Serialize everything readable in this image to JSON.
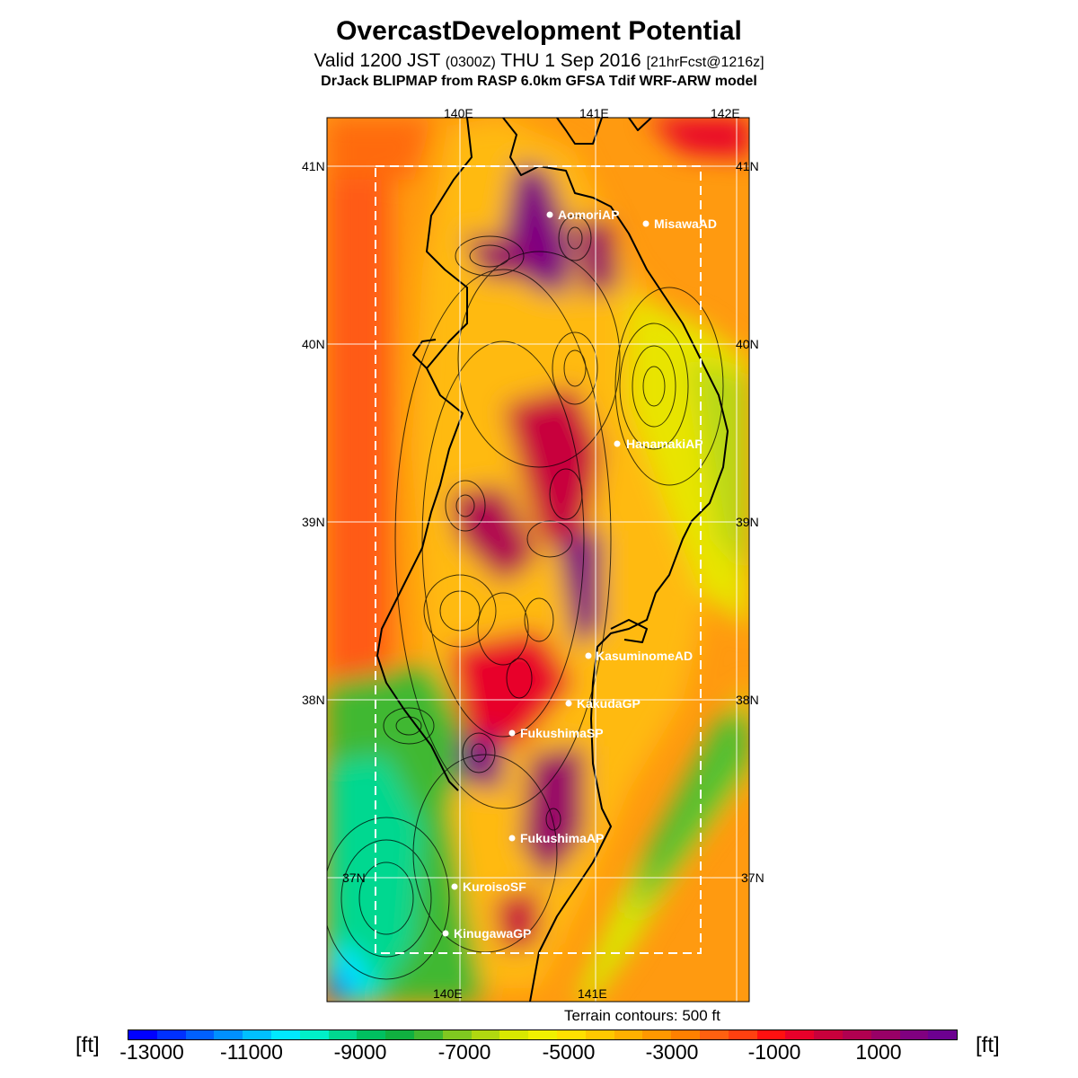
{
  "header": {
    "title": "OvercastDevelopment Potential",
    "valid_prefix": "Valid 1200 JST",
    "valid_utc": "(0300Z)",
    "valid_date": "THU 1 Sep 2016",
    "forecast": "[21hrFcst@1216z]",
    "model": "DrJack BLIPMAP from RASP 6.0km GFSA Tdif WRF-ARW model"
  },
  "map": {
    "lon_top": [
      "140E",
      "141E",
      "142E"
    ],
    "lon_bottom": [
      "140E",
      "141E"
    ],
    "lat_left": [
      "41N",
      "40N",
      "39N",
      "38N",
      "37N"
    ],
    "lat_right": [
      "41N",
      "40N",
      "39N",
      "38N",
      "37N"
    ],
    "stations": [
      {
        "name": "AomoriAP"
      },
      {
        "name": "MisawaAD"
      },
      {
        "name": "HanamakiAP"
      },
      {
        "name": "KasuminomeAD"
      },
      {
        "name": "KakudaGP"
      },
      {
        "name": "FukushimaSP"
      },
      {
        "name": "FukushimaAP"
      },
      {
        "name": "KuroisoSF"
      },
      {
        "name": "KinugawaGP"
      }
    ]
  },
  "legend": {
    "terrain_note": "Terrain contours: 500 ft",
    "unit_left": "[ft]",
    "unit_right": "[ft]",
    "labels": [
      "-13000",
      "-11000",
      "-9000",
      "-7000",
      "-5000",
      "-3000",
      "-1000",
      "1000"
    ],
    "colors": [
      "#0000ff",
      "#0030ff",
      "#0060ff",
      "#0090ff",
      "#00c0ff",
      "#00e8ff",
      "#00f0c8",
      "#00d890",
      "#00c060",
      "#10b040",
      "#40b830",
      "#80c820",
      "#b0d810",
      "#d8e800",
      "#f0f000",
      "#ffe000",
      "#ffc800",
      "#ffb000",
      "#ff9800",
      "#ff8000",
      "#ff6010",
      "#ff4010",
      "#ff1010",
      "#e8002a",
      "#c8003c",
      "#b00050",
      "#980066",
      "#800080",
      "#6c0090"
    ]
  }
}
